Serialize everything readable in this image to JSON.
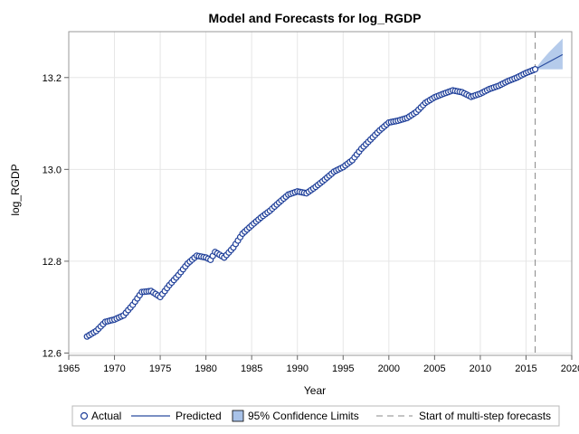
{
  "chart_data": {
    "type": "scatter",
    "title": "Model and Forecasts for log_RGDP",
    "xlabel": "Year",
    "ylabel": "log_RGDP",
    "xlim": [
      1965,
      2020
    ],
    "ylim": [
      12.6,
      13.2
    ],
    "plot_area_ylim": [
      12.595,
      13.3
    ],
    "xticks": [
      1965,
      1970,
      1975,
      1980,
      1985,
      1990,
      1995,
      2000,
      2005,
      2010,
      2015,
      2020
    ],
    "yticks": [
      12.6,
      12.8,
      13.0,
      13.2
    ],
    "ytick_labels": [
      "12.6",
      "12.8",
      "13.0",
      "13.2"
    ],
    "grid": true,
    "legend_position": "bottom",
    "legend": [
      "Actual",
      "Predicted",
      "95% Confidence Limits",
      "Start of multi-step forecasts"
    ],
    "colors": {
      "actual_marker": "#1f3f99",
      "predicted_line": "#2a4c9f",
      "confidence_band": "#a8c2e8",
      "reference_line": "#888888",
      "grid": "#e6e6e6",
      "frame": "#9a9a9a"
    },
    "forecast_start": 2016.0,
    "actual_anchors": [
      [
        1967.0,
        12.636
      ],
      [
        1968.0,
        12.648
      ],
      [
        1969.0,
        12.668
      ],
      [
        1970.0,
        12.673
      ],
      [
        1971.0,
        12.682
      ],
      [
        1972.0,
        12.705
      ],
      [
        1973.0,
        12.733
      ],
      [
        1974.0,
        12.735
      ],
      [
        1975.0,
        12.722
      ],
      [
        1976.0,
        12.748
      ],
      [
        1977.0,
        12.77
      ],
      [
        1978.0,
        12.795
      ],
      [
        1979.0,
        12.812
      ],
      [
        1980.0,
        12.808
      ],
      [
        1980.5,
        12.803
      ],
      [
        1981.0,
        12.82
      ],
      [
        1982.0,
        12.808
      ],
      [
        1983.0,
        12.83
      ],
      [
        1984.0,
        12.86
      ],
      [
        1985.0,
        12.878
      ],
      [
        1986.0,
        12.895
      ],
      [
        1987.0,
        12.91
      ],
      [
        1988.0,
        12.928
      ],
      [
        1989.0,
        12.945
      ],
      [
        1990.0,
        12.952
      ],
      [
        1991.0,
        12.948
      ],
      [
        1992.0,
        12.962
      ],
      [
        1993.0,
        12.978
      ],
      [
        1994.0,
        12.995
      ],
      [
        1995.0,
        13.005
      ],
      [
        1996.0,
        13.02
      ],
      [
        1997.0,
        13.045
      ],
      [
        1998.0,
        13.065
      ],
      [
        1999.0,
        13.085
      ],
      [
        2000.0,
        13.102
      ],
      [
        2001.0,
        13.106
      ],
      [
        2002.0,
        13.112
      ],
      [
        2003.0,
        13.125
      ],
      [
        2004.0,
        13.145
      ],
      [
        2005.0,
        13.157
      ],
      [
        2006.0,
        13.165
      ],
      [
        2007.0,
        13.172
      ],
      [
        2008.0,
        13.168
      ],
      [
        2009.0,
        13.158
      ],
      [
        2010.0,
        13.165
      ],
      [
        2011.0,
        13.175
      ],
      [
        2012.0,
        13.182
      ],
      [
        2013.0,
        13.192
      ],
      [
        2014.0,
        13.2
      ],
      [
        2015.0,
        13.21
      ],
      [
        2016.0,
        13.218
      ]
    ],
    "predicted_line": [
      [
        2016.0,
        13.218
      ],
      [
        2019.0,
        13.25
      ]
    ],
    "confidence_band": {
      "x": [
        2016.0,
        2016.75,
        2017.5,
        2018.25,
        2019.0
      ],
      "upper": [
        13.218,
        13.238,
        13.255,
        13.27,
        13.285
      ],
      "lower": [
        13.218,
        13.218,
        13.218,
        13.218,
        13.218
      ]
    }
  }
}
